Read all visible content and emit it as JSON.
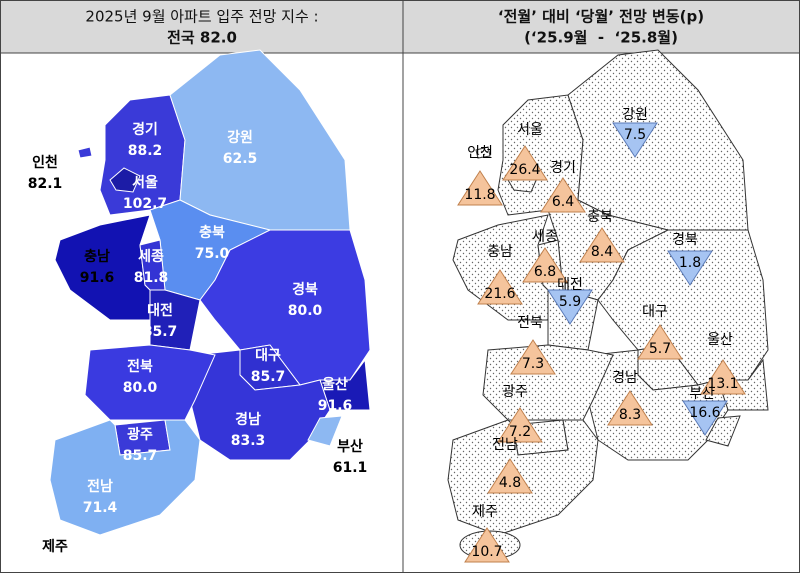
{
  "header": {
    "left": {
      "line1": "2025년 9월 아파트 입주 전망 지수 :",
      "line2": "전국 82.0"
    },
    "right": {
      "line1": "‘전월’ 대비 ‘당월’ 전망 변동(p)",
      "line2": "(‘25.9월  -  ‘25.8월)"
    }
  },
  "left_map": {
    "regions": [
      {
        "name": "경기",
        "value": "88.2",
        "color": "#3a3ad8"
      },
      {
        "name": "서울",
        "value": "102.7",
        "color": "#1c1ca6"
      },
      {
        "name": "인천",
        "value": "82.1",
        "color": "#3a3ad8"
      },
      {
        "name": "강원",
        "value": "62.5",
        "color": "#8db8f2"
      },
      {
        "name": "충북",
        "value": "75.0",
        "color": "#5a8ef0"
      },
      {
        "name": "충남",
        "value": "91.6",
        "color": "#1212b2"
      },
      {
        "name": "세종",
        "value": "81.8",
        "color": "#3434d4"
      },
      {
        "name": "대전",
        "value": "85.7",
        "color": "#2020b8"
      },
      {
        "name": "경북",
        "value": "80.0",
        "color": "#3c3ce2"
      },
      {
        "name": "대구",
        "value": "85.7",
        "color": "#3030d0"
      },
      {
        "name": "울산",
        "value": "91.6",
        "color": "#1a1ab6"
      },
      {
        "name": "경남",
        "value": "83.3",
        "color": "#3535d8"
      },
      {
        "name": "부산",
        "value": "61.1",
        "color": "#8db8f2"
      },
      {
        "name": "전북",
        "value": "80.0",
        "color": "#3a3ae0"
      },
      {
        "name": "광주",
        "value": "85.7",
        "color": "#3a3ad8"
      },
      {
        "name": "전남",
        "value": "71.4",
        "color": "#7fb0f2"
      },
      {
        "name": "제주",
        "value": null,
        "color": "#8db8f2"
      }
    ]
  },
  "right_map": {
    "regions": [
      {
        "name": "서울",
        "value": "26.4",
        "trend": "up"
      },
      {
        "name": "인천",
        "value": "11.8",
        "trend": "up"
      },
      {
        "name": "경기",
        "value": "6.4",
        "trend": "up"
      },
      {
        "name": "강원",
        "value": "7.5",
        "trend": "down"
      },
      {
        "name": "충북",
        "value": "8.4",
        "trend": "up"
      },
      {
        "name": "경북",
        "value": "1.8",
        "trend": "down"
      },
      {
        "name": "세종",
        "value": "6.8",
        "trend": "up"
      },
      {
        "name": "충남",
        "value": "21.6",
        "trend": "up"
      },
      {
        "name": "대전",
        "value": "5.9",
        "trend": "down"
      },
      {
        "name": "대구",
        "value": "5.7",
        "trend": "up"
      },
      {
        "name": "전북",
        "value": "7.3",
        "trend": "up"
      },
      {
        "name": "울산",
        "value": "13.1",
        "trend": "up"
      },
      {
        "name": "경남",
        "value": "8.3",
        "trend": "up"
      },
      {
        "name": "부산",
        "value": "16.6",
        "trend": "down"
      },
      {
        "name": "광주",
        "value": "7.2",
        "trend": "up"
      },
      {
        "name": "전남",
        "value": "4.8",
        "trend": "up"
      },
      {
        "name": "제주",
        "value": "10.7",
        "trend": "up"
      }
    ]
  }
}
